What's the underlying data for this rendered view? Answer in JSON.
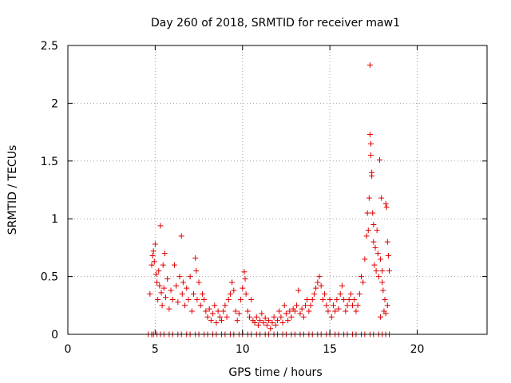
{
  "chart_data": {
    "type": "scatter",
    "title": "Day 260 of 2018, SRMTID for receiver maw1",
    "xlabel": "GPS time / hours",
    "ylabel": "SRMTID / TECUs",
    "xlim": [
      0,
      24
    ],
    "ylim": [
      0,
      2.5
    ],
    "xticks": [
      0,
      5,
      10,
      15,
      20
    ],
    "xtick_labels": [
      "0",
      "5",
      "10",
      "15",
      "20"
    ],
    "yticks": [
      0,
      0.5,
      1,
      1.5,
      2,
      2.5
    ],
    "ytick_labels": [
      "0",
      "0.5",
      "1",
      "1.5",
      "2",
      "2.5"
    ],
    "grid": true,
    "marker": "+",
    "colors": {
      "series": "#e00000",
      "axis": "#000000",
      "grid": "#a0a0a0"
    },
    "series": [
      {
        "name": "maw1",
        "points": [
          [
            4.6,
            0
          ],
          [
            4.8,
            0
          ],
          [
            4.9,
            0
          ],
          [
            5.1,
            0
          ],
          [
            5.3,
            0
          ],
          [
            5.5,
            0
          ],
          [
            5.8,
            0
          ],
          [
            6.0,
            0
          ],
          [
            6.3,
            0
          ],
          [
            6.5,
            0
          ],
          [
            6.8,
            0
          ],
          [
            7.0,
            0
          ],
          [
            7.3,
            0
          ],
          [
            7.5,
            0
          ],
          [
            7.8,
            0
          ],
          [
            8.0,
            0
          ],
          [
            8.3,
            0
          ],
          [
            8.5,
            0
          ],
          [
            8.8,
            0
          ],
          [
            9.0,
            0
          ],
          [
            9.3,
            0
          ],
          [
            9.5,
            0
          ],
          [
            9.8,
            0
          ],
          [
            10.0,
            0
          ],
          [
            10.3,
            0
          ],
          [
            10.5,
            0
          ],
          [
            10.8,
            0
          ],
          [
            11.0,
            0
          ],
          [
            11.3,
            0
          ],
          [
            11.5,
            0
          ],
          [
            11.8,
            0
          ],
          [
            12.0,
            0
          ],
          [
            12.3,
            0
          ],
          [
            12.5,
            0
          ],
          [
            12.8,
            0
          ],
          [
            13.0,
            0
          ],
          [
            13.3,
            0
          ],
          [
            13.5,
            0
          ],
          [
            13.8,
            0
          ],
          [
            14.0,
            0
          ],
          [
            14.3,
            0
          ],
          [
            14.5,
            0
          ],
          [
            14.8,
            0
          ],
          [
            15.0,
            0
          ],
          [
            15.3,
            0
          ],
          [
            15.5,
            0
          ],
          [
            15.8,
            0
          ],
          [
            16.0,
            0
          ],
          [
            16.3,
            0
          ],
          [
            16.5,
            0
          ],
          [
            16.8,
            0
          ],
          [
            17.0,
            0
          ],
          [
            17.3,
            0
          ],
          [
            17.5,
            0
          ],
          [
            17.8,
            0
          ],
          [
            18.0,
            0
          ],
          [
            18.2,
            0
          ],
          [
            18.4,
            0
          ],
          [
            4.7,
            0.35
          ],
          [
            4.8,
            0.6
          ],
          [
            4.85,
            0.68
          ],
          [
            4.9,
            0.72
          ],
          [
            4.95,
            0.63
          ],
          [
            5.0,
            0.78
          ],
          [
            5.05,
            0.52
          ],
          [
            5.1,
            0.45
          ],
          [
            5.15,
            0.3
          ],
          [
            5.2,
            0.55
          ],
          [
            5.25,
            0.42
          ],
          [
            5.3,
            0.94
          ],
          [
            5.35,
            0.36
          ],
          [
            5.4,
            0.25
          ],
          [
            5.45,
            0.6
          ],
          [
            5.5,
            0.4
          ],
          [
            5.55,
            0.7
          ],
          [
            5.6,
            0.32
          ],
          [
            5.7,
            0.48
          ],
          [
            5.8,
            0.22
          ],
          [
            5.9,
            0.38
          ],
          [
            6.0,
            0.3
          ],
          [
            6.1,
            0.6
          ],
          [
            6.2,
            0.42
          ],
          [
            6.3,
            0.28
          ],
          [
            6.4,
            0.5
          ],
          [
            6.5,
            0.85
          ],
          [
            6.55,
            0.35
          ],
          [
            6.6,
            0.45
          ],
          [
            6.7,
            0.25
          ],
          [
            6.8,
            0.4
          ],
          [
            6.9,
            0.3
          ],
          [
            7.0,
            0.5
          ],
          [
            7.1,
            0.2
          ],
          [
            7.2,
            0.35
          ],
          [
            7.3,
            0.66
          ],
          [
            7.35,
            0.55
          ],
          [
            7.4,
            0.3
          ],
          [
            7.5,
            0.45
          ],
          [
            7.6,
            0.25
          ],
          [
            7.7,
            0.35
          ],
          [
            7.8,
            0.3
          ],
          [
            7.9,
            0.2
          ],
          [
            8.0,
            0.15
          ],
          [
            8.1,
            0.22
          ],
          [
            8.2,
            0.12
          ],
          [
            8.3,
            0.18
          ],
          [
            8.4,
            0.25
          ],
          [
            8.5,
            0.1
          ],
          [
            8.6,
            0.2
          ],
          [
            8.7,
            0.15
          ],
          [
            8.8,
            0.12
          ],
          [
            8.9,
            0.2
          ],
          [
            9.0,
            0.25
          ],
          [
            9.1,
            0.15
          ],
          [
            9.2,
            0.3
          ],
          [
            9.3,
            0.35
          ],
          [
            9.4,
            0.45
          ],
          [
            9.5,
            0.38
          ],
          [
            9.6,
            0.2
          ],
          [
            9.7,
            0.12
          ],
          [
            9.8,
            0.18
          ],
          [
            9.9,
            0.3
          ],
          [
            10.0,
            0.4
          ],
          [
            10.1,
            0.54
          ],
          [
            10.15,
            0.48
          ],
          [
            10.2,
            0.35
          ],
          [
            10.3,
            0.2
          ],
          [
            10.4,
            0.15
          ],
          [
            10.5,
            0.3
          ],
          [
            10.6,
            0.12
          ],
          [
            10.7,
            0.1
          ],
          [
            10.8,
            0.15
          ],
          [
            10.9,
            0.08
          ],
          [
            11.0,
            0.12
          ],
          [
            11.1,
            0.18
          ],
          [
            11.2,
            0.1
          ],
          [
            11.3,
            0.14
          ],
          [
            11.4,
            0.08
          ],
          [
            11.5,
            0.12
          ],
          [
            11.6,
            0.05
          ],
          [
            11.7,
            0.1
          ],
          [
            11.8,
            0.15
          ],
          [
            11.9,
            0.08
          ],
          [
            12.0,
            0.12
          ],
          [
            12.1,
            0.2
          ],
          [
            12.2,
            0.15
          ],
          [
            12.3,
            0.1
          ],
          [
            12.4,
            0.25
          ],
          [
            12.5,
            0.18
          ],
          [
            12.6,
            0.12
          ],
          [
            12.7,
            0.2
          ],
          [
            12.8,
            0.15
          ],
          [
            12.9,
            0.22
          ],
          [
            13.0,
            0.2
          ],
          [
            13.1,
            0.25
          ],
          [
            13.2,
            0.38
          ],
          [
            13.3,
            0.18
          ],
          [
            13.4,
            0.22
          ],
          [
            13.5,
            0.15
          ],
          [
            13.6,
            0.25
          ],
          [
            13.7,
            0.3
          ],
          [
            13.8,
            0.2
          ],
          [
            13.9,
            0.25
          ],
          [
            14.0,
            0.3
          ],
          [
            14.1,
            0.35
          ],
          [
            14.2,
            0.4
          ],
          [
            14.3,
            0.45
          ],
          [
            14.4,
            0.5
          ],
          [
            14.5,
            0.42
          ],
          [
            14.6,
            0.3
          ],
          [
            14.7,
            0.35
          ],
          [
            14.8,
            0.25
          ],
          [
            14.9,
            0.2
          ],
          [
            15.0,
            0.3
          ],
          [
            15.1,
            0.15
          ],
          [
            15.2,
            0.25
          ],
          [
            15.3,
            0.2
          ],
          [
            15.4,
            0.3
          ],
          [
            15.5,
            0.22
          ],
          [
            15.6,
            0.35
          ],
          [
            15.7,
            0.42
          ],
          [
            15.8,
            0.3
          ],
          [
            15.9,
            0.2
          ],
          [
            16.0,
            0.25
          ],
          [
            16.1,
            0.3
          ],
          [
            16.2,
            0.35
          ],
          [
            16.3,
            0.25
          ],
          [
            16.4,
            0.3
          ],
          [
            16.5,
            0.2
          ],
          [
            16.6,
            0.25
          ],
          [
            16.7,
            0.35
          ],
          [
            16.8,
            0.5
          ],
          [
            16.9,
            0.45
          ],
          [
            17.0,
            0.65
          ],
          [
            17.1,
            0.85
          ],
          [
            17.15,
            1.05
          ],
          [
            17.2,
            0.9
          ],
          [
            17.25,
            1.18
          ],
          [
            17.3,
            2.33
          ],
          [
            17.3,
            1.73
          ],
          [
            17.35,
            1.65
          ],
          [
            17.35,
            1.55
          ],
          [
            17.4,
            1.4
          ],
          [
            17.4,
            1.37
          ],
          [
            17.45,
            1.05
          ],
          [
            17.5,
            0.95
          ],
          [
            17.5,
            0.8
          ],
          [
            17.55,
            0.6
          ],
          [
            17.6,
            0.75
          ],
          [
            17.65,
            0.55
          ],
          [
            17.7,
            0.9
          ],
          [
            17.75,
            0.7
          ],
          [
            17.8,
            0.5
          ],
          [
            17.85,
            1.51
          ],
          [
            17.9,
            0.65
          ],
          [
            17.95,
            1.18
          ],
          [
            18.0,
            0.55
          ],
          [
            18.05,
            0.38
          ],
          [
            18.1,
            0.2
          ],
          [
            18.15,
            0.3
          ],
          [
            18.2,
            1.13
          ],
          [
            18.25,
            1.1
          ],
          [
            18.3,
            0.8
          ],
          [
            18.35,
            0.68
          ],
          [
            18.4,
            0.55
          ],
          [
            18.3,
            0.25
          ],
          [
            18.2,
            0.18
          ],
          [
            17.9,
            0.15
          ],
          [
            18.0,
            0.45
          ]
        ]
      }
    ]
  }
}
